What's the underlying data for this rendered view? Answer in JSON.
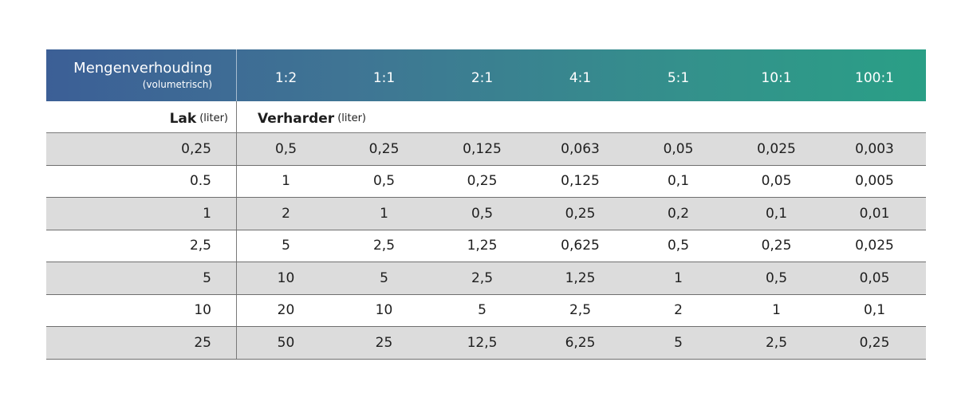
{
  "header": {
    "title": "Mengenverhouding",
    "subtitle": "(volumetrisch)",
    "ratios": [
      "1:2",
      "1:1",
      "2:1",
      "4:1",
      "5:1",
      "10:1",
      "100:1"
    ]
  },
  "subheader": {
    "lak_label": "Lak",
    "lak_unit": "(liter)",
    "verharder_label": "Verharder",
    "verharder_unit": "(liter)"
  },
  "rows": [
    {
      "lak": "0,25",
      "values": [
        "0,5",
        "0,25",
        "0,125",
        "0,063",
        "0,05",
        "0,025",
        "0,003"
      ]
    },
    {
      "lak": "0.5",
      "values": [
        "1",
        "0,5",
        "0,25",
        "0,125",
        "0,1",
        "0,05",
        "0,005"
      ]
    },
    {
      "lak": "1",
      "values": [
        "2",
        "1",
        "0,5",
        "0,25",
        "0,2",
        "0,1",
        "0,01"
      ]
    },
    {
      "lak": "2,5",
      "values": [
        "5",
        "2,5",
        "1,25",
        "0,625",
        "0,5",
        "0,25",
        "0,025"
      ]
    },
    {
      "lak": "5",
      "values": [
        "10",
        "5",
        "2,5",
        "1,25",
        "1",
        "0,5",
        "0,05"
      ]
    },
    {
      "lak": "10",
      "values": [
        "20",
        "10",
        "5",
        "2,5",
        "2",
        "1",
        "0,1"
      ]
    },
    {
      "lak": "25",
      "values": [
        "50",
        "25",
        "12,5",
        "6,25",
        "5",
        "2,5",
        "0,25"
      ]
    }
  ],
  "colors": {
    "header_gradient_start": "#3c5f96",
    "header_gradient_end": "#2a9f86",
    "row_shade": "#dcdcdc"
  }
}
